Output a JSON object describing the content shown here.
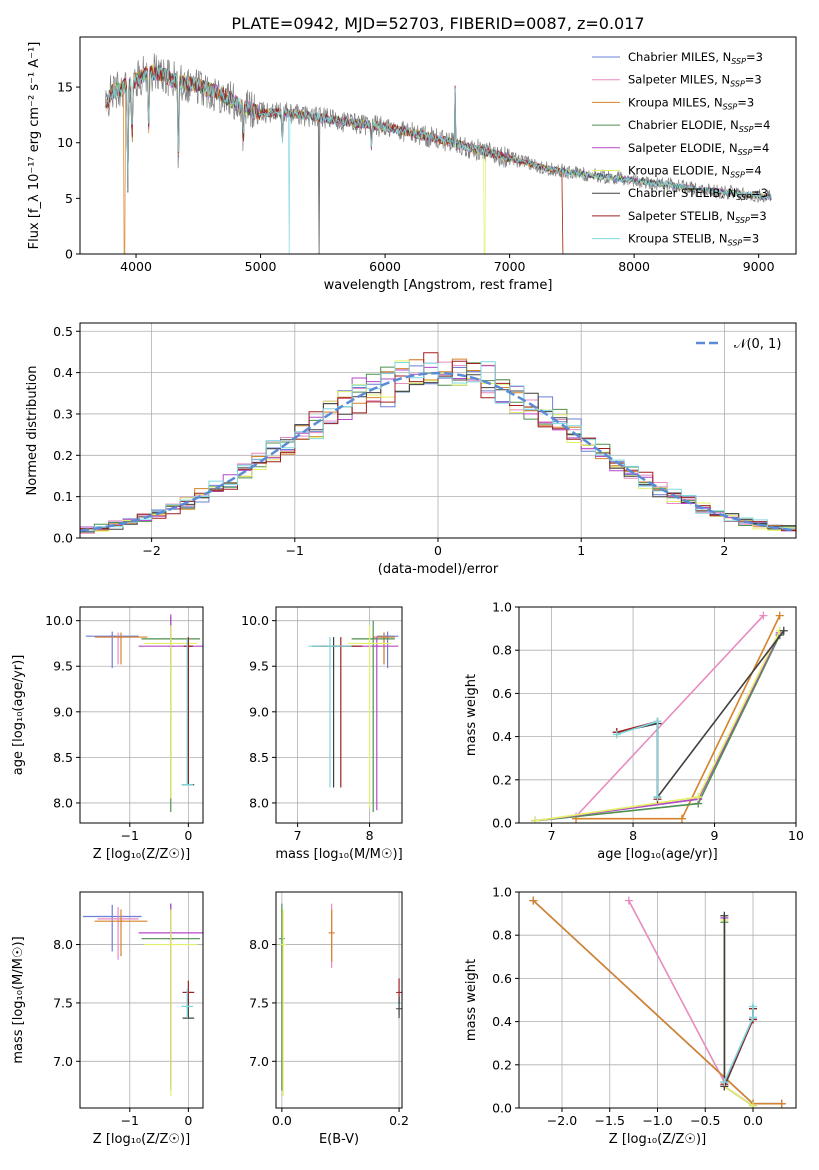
{
  "figure_title": "PLATE=0942, MJD=52703, FIBERID=0087, z=0.017",
  "colors": {
    "Chabrier MILES": "#6b7fd7",
    "Salpeter MILES": "#e88bc0",
    "Kroupa MILES": "#d4832a",
    "Chabrier ELODIE": "#4f8f4f",
    "Salpeter ELODIE": "#b64ac9",
    "Kroupa ELODIE": "#e3f06a",
    "Chabrier STELIB": "#404040",
    "Salpeter STELIB": "#a02020",
    "Kroupa STELIB": "#7fd8e0",
    "gaussian": "#5b8bd6",
    "observed": "#808080",
    "grid": "#b0b0b0"
  },
  "chart_data": [
    {
      "type": "line",
      "id": "spectrum",
      "title": "PLATE=0942, MJD=52703, FIBERID=0087, z=0.017",
      "xlabel": "wavelength [Angstrom, rest frame]",
      "ylabel": "Flux [f_λ 10⁻¹⁷ erg cm⁻² s⁻¹ A⁻¹]",
      "xlim": [
        3550,
        9300
      ],
      "ylim": [
        0,
        19.5
      ],
      "xticks": [
        4000,
        5000,
        6000,
        7000,
        8000,
        9000
      ],
      "yticks": [
        0,
        5,
        10,
        15
      ],
      "legend_position": "upper right",
      "legend": [
        "Chabrier MILES, N_SSP=3",
        "Salpeter MILES, N_SSP=3",
        "Kroupa MILES, N_SSP=3",
        "Chabrier ELODIE, N_SSP=4",
        "Salpeter ELODIE, N_SSP=4",
        "Kroupa ELODIE, N_SSP=4",
        "Chabrier STELIB, N_SSP=3",
        "Salpeter STELIB, N_SSP=3",
        "Kroupa STELIB, N_SSP=3"
      ],
      "continuum": {
        "x": [
          3750,
          3800,
          3900,
          4000,
          4100,
          4200,
          4300,
          4500,
          4700,
          4850,
          5000,
          5200,
          5500,
          5800,
          6000,
          6300,
          6500,
          6700,
          7000,
          7300,
          7500,
          7800,
          8000,
          8300,
          8500,
          8800,
          9000,
          9100
        ],
        "y": [
          13.0,
          14.5,
          15.0,
          15.6,
          16.4,
          16.2,
          15.6,
          15.1,
          14.3,
          13.2,
          12.7,
          12.7,
          12.2,
          11.7,
          11.4,
          10.7,
          10.1,
          9.5,
          8.6,
          7.7,
          7.3,
          6.9,
          6.6,
          6.2,
          5.8,
          5.5,
          5.2,
          5.1
        ]
      },
      "features": [
        {
          "type": "absorption",
          "x": 3934,
          "depth": 9.0
        },
        {
          "type": "absorption",
          "x": 3968,
          "depth": 5.0
        },
        {
          "type": "absorption",
          "x": 4102,
          "depth": 5.0
        },
        {
          "type": "absorption",
          "x": 4340,
          "depth": 7.0
        },
        {
          "type": "absorption",
          "x": 4861,
          "depth": 3.0
        },
        {
          "type": "absorption",
          "x": 5175,
          "depth": 2.5
        },
        {
          "type": "absorption",
          "x": 5890,
          "depth": 2.0
        },
        {
          "type": "emission",
          "x": 6563,
          "height": 5.5
        }
      ],
      "model_gaps": [
        {
          "x": 3905,
          "series": "Kroupa MILES"
        },
        {
          "x": 5230,
          "series": "Kroupa STELIB"
        },
        {
          "x": 5470,
          "series": "Chabrier STELIB"
        },
        {
          "x": 6800,
          "series": "Kroupa ELODIE"
        }
      ],
      "model_end": {
        "Salpeter STELIB": 7420,
        "Kroupa MILES": 7420
      }
    },
    {
      "type": "histogram",
      "id": "residuals",
      "xlabel": "(data-model)/error",
      "ylabel": "Normed distribution",
      "xlim": [
        -2.5,
        2.5
      ],
      "ylim": [
        0,
        0.52
      ],
      "xticks": [
        -2,
        -1,
        0,
        1,
        2
      ],
      "yticks": [
        0.0,
        0.1,
        0.2,
        0.3,
        0.4,
        0.5
      ],
      "legend": [
        "𝒩(0, 1)"
      ],
      "legend_position": "upper right",
      "bin_width": 0.1
    },
    {
      "type": "scatter",
      "id": "age-vs-Z",
      "xlabel": "Z [log₁₀(Z/Z☉)]",
      "ylabel": "age  [log₁₀(age/yr)]",
      "xlim": [
        -1.85,
        0.25
      ],
      "ylim": [
        7.78,
        10.15
      ],
      "xticks": [
        -1,
        0
      ],
      "yticks": [
        8.0,
        8.5,
        9.0,
        9.5,
        10.0
      ],
      "errorbars": [
        {
          "series": "Chabrier MILES",
          "x": -1.3,
          "y": 9.83,
          "xerr": 0.45,
          "yerr": [
            0.35,
            0.05
          ]
        },
        {
          "series": "Salpeter MILES",
          "x": -1.2,
          "y": 9.82,
          "xerr": 0.35,
          "yerr": [
            0.3,
            0.05
          ]
        },
        {
          "series": "Kroupa MILES",
          "x": -1.15,
          "y": 9.82,
          "xerr": 0.45,
          "yerr": [
            0.3,
            0.05
          ]
        },
        {
          "series": "Chabrier ELODIE",
          "x": -0.3,
          "y": 9.8,
          "xerr": 0.5,
          "yerr": [
            1.9,
            0.25
          ]
        },
        {
          "series": "Salpeter ELODIE",
          "x": -0.3,
          "y": 9.72,
          "xerr": 0.55,
          "yerr": [
            0.2,
            0.35
          ]
        },
        {
          "series": "Kroupa ELODIE",
          "x": -0.3,
          "y": 9.75,
          "xerr": 0.45,
          "yerr": [
            1.7,
            0.2
          ]
        },
        {
          "series": "Chabrier STELIB",
          "x": 0.0,
          "y": 8.2,
          "xerr": 0.1,
          "yerr": [
            0.0,
            1.6
          ]
        },
        {
          "series": "Salpeter STELIB",
          "x": 0.0,
          "y": 9.72,
          "xerr": 0.08,
          "yerr": [
            1.5,
            0.1
          ]
        },
        {
          "series": "Kroupa STELIB",
          "x": -0.02,
          "y": 8.2,
          "xerr": 0.1,
          "yerr": [
            0.0,
            1.6
          ]
        }
      ]
    },
    {
      "type": "scatter",
      "id": "age-vs-mass",
      "xlabel": "mass [log₁₀(M/M☉)]",
      "ylabel": "",
      "xlim": [
        6.7,
        8.45
      ],
      "ylim": [
        7.78,
        10.15
      ],
      "xticks": [
        7,
        8
      ],
      "yticks": [
        8.0,
        8.5,
        9.0,
        9.5,
        10.0
      ],
      "errorbars": [
        {
          "series": "Chabrier MILES",
          "x": 8.25,
          "y": 9.83,
          "xerr": 0.15,
          "yerr": [
            0.35,
            0.05
          ]
        },
        {
          "series": "Salpeter MILES",
          "x": 8.2,
          "y": 9.82,
          "xerr": 0.15,
          "yerr": [
            0.3,
            0.05
          ]
        },
        {
          "series": "Kroupa MILES",
          "x": 8.2,
          "y": 9.82,
          "xerr": 0.15,
          "yerr": [
            0.3,
            0.05
          ]
        },
        {
          "series": "Chabrier ELODIE",
          "x": 8.05,
          "y": 9.8,
          "xerr": 0.3,
          "yerr": [
            1.9,
            0.2
          ]
        },
        {
          "series": "Salpeter ELODIE",
          "x": 8.1,
          "y": 9.72,
          "xerr": 0.3,
          "yerr": [
            1.8,
            0.1
          ]
        },
        {
          "series": "Kroupa ELODIE",
          "x": 8.0,
          "y": 9.75,
          "xerr": 0.3,
          "yerr": [
            1.8,
            0.2
          ]
        },
        {
          "series": "Chabrier STELIB",
          "x": 7.5,
          "y": 9.72,
          "xerr": 0.3,
          "yerr": [
            1.55,
            0.1
          ]
        },
        {
          "series": "Salpeter STELIB",
          "x": 7.6,
          "y": 9.72,
          "xerr": 0.3,
          "yerr": [
            1.55,
            0.1
          ]
        },
        {
          "series": "Kroupa STELIB",
          "x": 7.45,
          "y": 9.72,
          "xerr": 0.3,
          "yerr": [
            1.55,
            0.1
          ]
        }
      ]
    },
    {
      "type": "line",
      "id": "weight-vs-age",
      "xlabel": "age  [log₁₀(age/yr)]",
      "ylabel": "mass weight",
      "xlim": [
        6.6,
        10
      ],
      "ylim": [
        0,
        1
      ],
      "xticks": [
        7,
        8,
        9,
        10
      ],
      "yticks": [
        0.0,
        0.2,
        0.4,
        0.6,
        0.8,
        1.0
      ],
      "series": [
        {
          "name": "Chabrier MILES",
          "x": [
            6.8,
            8.8,
            9.8
          ],
          "y": [
            0.01,
            0.11,
            0.87
          ]
        },
        {
          "name": "Salpeter MILES",
          "x": [
            7.3,
            9.6
          ],
          "y": [
            0.03,
            0.96
          ]
        },
        {
          "name": "Kroupa MILES",
          "x": [
            7.3,
            8.6,
            9.8
          ],
          "y": [
            0.02,
            0.02,
            0.96
          ]
        },
        {
          "name": "Chabrier ELODIE",
          "x": [
            6.8,
            8.8,
            9.8
          ],
          "y": [
            0.01,
            0.09,
            0.87
          ]
        },
        {
          "name": "Salpeter ELODIE",
          "x": [
            6.8,
            8.8,
            9.8
          ],
          "y": [
            0.01,
            0.11,
            0.88
          ]
        },
        {
          "name": "Kroupa ELODIE",
          "x": [
            6.8,
            8.8,
            9.8
          ],
          "y": [
            0.01,
            0.12,
            0.89
          ]
        },
        {
          "name": "Chabrier STELIB",
          "x": [
            7.8,
            8.3,
            8.3,
            9.85
          ],
          "y": [
            0.42,
            0.46,
            0.12,
            0.89
          ]
        },
        {
          "name": "Salpeter STELIB",
          "x": [
            7.8,
            8.3,
            8.3
          ],
          "y": [
            0.42,
            0.47,
            0.11
          ]
        },
        {
          "name": "Kroupa STELIB",
          "x": [
            7.8,
            8.3,
            8.3
          ],
          "y": [
            0.41,
            0.47,
            0.12
          ]
        }
      ]
    },
    {
      "type": "scatter",
      "id": "mass-vs-Z",
      "xlabel": "Z [log₁₀(Z/Z☉)]",
      "ylabel": "mass [log₁₀(M/M☉)]",
      "xlim": [
        -1.85,
        0.25
      ],
      "ylim": [
        6.6,
        8.45
      ],
      "xticks": [
        -1,
        0
      ],
      "yticks": [
        7.0,
        7.5,
        8.0
      ],
      "errorbars": [
        {
          "series": "Chabrier MILES",
          "x": -1.3,
          "y": 8.24,
          "xerr": 0.5,
          "yerr": [
            0.3,
            0.1
          ]
        },
        {
          "series": "Salpeter MILES",
          "x": -1.2,
          "y": 8.22,
          "xerr": 0.35,
          "yerr": [
            0.35,
            0.1
          ]
        },
        {
          "series": "Kroupa MILES",
          "x": -1.15,
          "y": 8.2,
          "xerr": 0.45,
          "yerr": [
            0.3,
            0.1
          ]
        },
        {
          "series": "Chabrier ELODIE",
          "x": -0.3,
          "y": 8.05,
          "xerr": 0.5,
          "yerr": [
            1.3,
            0.3
          ]
        },
        {
          "series": "Salpeter ELODIE",
          "x": -0.3,
          "y": 8.1,
          "xerr": 0.55,
          "yerr": [
            1.3,
            0.25
          ]
        },
        {
          "series": "Kroupa ELODIE",
          "x": -0.3,
          "y": 8.0,
          "xerr": 0.45,
          "yerr": [
            1.3,
            0.3
          ]
        },
        {
          "series": "Chabrier STELIB",
          "x": 0.0,
          "y": 7.37,
          "xerr": 0.1,
          "yerr": [
            0.0,
            0.2
          ]
        },
        {
          "series": "Salpeter STELIB",
          "x": 0.0,
          "y": 7.59,
          "xerr": 0.1,
          "yerr": [
            0.1,
            0.1
          ]
        },
        {
          "series": "Kroupa STELIB",
          "x": -0.02,
          "y": 7.47,
          "xerr": 0.1,
          "yerr": [
            0.1,
            0.15
          ]
        }
      ]
    },
    {
      "type": "scatter",
      "id": "mass-vs-ebv",
      "xlabel": "E(B-V)",
      "ylabel": "",
      "xlim": [
        -0.01,
        0.205
      ],
      "ylim": [
        6.6,
        8.45
      ],
      "xticks": [
        0.0,
        0.2
      ],
      "yticks": [
        7.0,
        7.5,
        8.0
      ],
      "errorbars": [
        {
          "series": "Salpeter MILES",
          "x": 0.085,
          "y": 8.1,
          "xerr": 0.0,
          "yerr": [
            0.3,
            0.25
          ]
        },
        {
          "series": "Kroupa MILES",
          "x": 0.085,
          "y": 8.1,
          "xerr": 0.0,
          "yerr": [
            0.25,
            0.2
          ]
        },
        {
          "series": "Chabrier ELODIE",
          "x": 0.0,
          "y": 8.05,
          "xerr": 0.0,
          "yerr": [
            1.3,
            0.3
          ]
        },
        {
          "series": "Kroupa ELODIE",
          "x": 0.002,
          "y": 8.0,
          "xerr": 0.0,
          "yerr": [
            1.3,
            0.3
          ]
        },
        {
          "series": "Kroupa STELIB",
          "x": 0.2,
          "y": 7.5,
          "xerr": 0.0,
          "yerr": [
            0.1,
            0.1
          ]
        },
        {
          "series": "Salpeter STELIB",
          "x": 0.2,
          "y": 7.59,
          "xerr": 0.0,
          "yerr": [
            0.1,
            0.12
          ]
        },
        {
          "series": "Chabrier STELIB",
          "x": 0.2,
          "y": 7.45,
          "xerr": 0.0,
          "yerr": [
            0.08,
            0.1
          ]
        }
      ]
    },
    {
      "type": "line",
      "id": "weight-vs-Z",
      "xlabel": "Z [log₁₀(Z/Z☉)]",
      "ylabel": "mass weight",
      "xlim": [
        -2.45,
        0.45
      ],
      "ylim": [
        0,
        1
      ],
      "xticks": [
        -2.0,
        -1.5,
        -1.0,
        -0.5,
        0.0
      ],
      "yticks": [
        0.0,
        0.2,
        0.4,
        0.6,
        0.8,
        1.0
      ],
      "series": [
        {
          "name": "Chabrier MILES",
          "x": [
            -2.3,
            0.0,
            0.3
          ],
          "y": [
            0.96,
            0.02,
            0.02
          ]
        },
        {
          "name": "Salpeter MILES",
          "x": [
            -1.3,
            -0.3
          ],
          "y": [
            0.96,
            0.12
          ]
        },
        {
          "name": "Kroupa MILES",
          "x": [
            -2.3,
            0.0,
            0.3
          ],
          "y": [
            0.96,
            0.02,
            0.02
          ]
        },
        {
          "name": "Chabrier ELODIE",
          "x": [
            -0.3,
            -0.3,
            0.0
          ],
          "y": [
            0.86,
            0.1,
            0.01
          ]
        },
        {
          "name": "Salpeter ELODIE",
          "x": [
            -0.3,
            -0.3,
            0.0
          ],
          "y": [
            0.88,
            0.1,
            0.01
          ]
        },
        {
          "name": "Kroupa ELODIE",
          "x": [
            -0.3,
            -0.3,
            0.0
          ],
          "y": [
            0.87,
            0.1,
            0.01
          ]
        },
        {
          "name": "Chabrier STELIB",
          "x": [
            -0.3,
            -0.3,
            0.0,
            0.0
          ],
          "y": [
            0.89,
            0.1,
            0.41,
            0.46
          ]
        },
        {
          "name": "Salpeter STELIB",
          "x": [
            -0.3,
            0.0,
            0.0
          ],
          "y": [
            0.11,
            0.41,
            0.46
          ]
        },
        {
          "name": "Kroupa STELIB",
          "x": [
            -0.3,
            0.0,
            0.0
          ],
          "y": [
            0.12,
            0.42,
            0.47
          ]
        }
      ]
    }
  ]
}
